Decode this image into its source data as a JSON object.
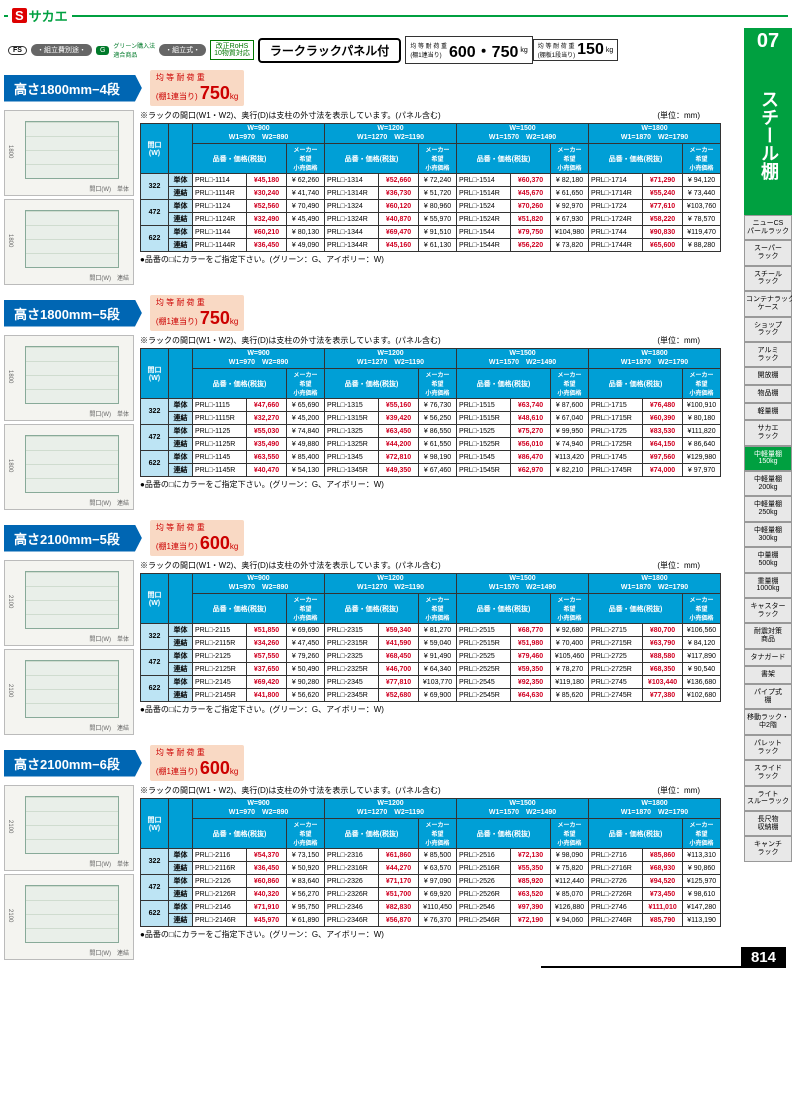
{
  "brand": {
    "s": "S",
    "name": "サカエ"
  },
  "badges": {
    "fs": "FS",
    "p1": "・組立費別途・",
    "g": "G",
    "gtxt": "グリーン購入法\n適合商品",
    "p2": "・組立式・",
    "rohs": "改正RoHS\n10物質対応"
  },
  "title": "ラークラックパネル付",
  "loads": [
    {
      "l": "均 等 耐 荷 重\n(棚1連当り)",
      "n": "600・750",
      "u": "kg"
    },
    {
      "l": "均 等 耐 荷 重\n(棚板1段当り)",
      "n": "150",
      "u": "kg"
    }
  ],
  "side": {
    "num": "07",
    "name": "スチール棚",
    "tabs": [
      "ニューCS\nパールラック",
      "スーパー\nラック",
      "スチール\nラック",
      "コンテナラック\nケース",
      "ショップ\nラック",
      "アルミ\nラック",
      "開放棚",
      "物品棚",
      "軽量棚",
      "サカエ\nラック",
      "中軽量棚\n150kg",
      "中軽量棚\n200kg",
      "中軽量棚\n250kg",
      "中軽量棚\n300kg",
      "中量棚\n500kg",
      "重量棚\n1000kg",
      "キャスター\nラック",
      "耐震対策\n商品",
      "タナガード",
      "書架",
      "パイプ式\n棚",
      "移動ラック・\n中2階",
      "パレット\nラック",
      "スライド\nラック",
      "ライト\nスルーラック",
      "長尺物\n収納棚",
      "キャンチ\nラック"
    ],
    "active": 10
  },
  "tablehdr": {
    "note": "※ラックの間口(W1・W2)、奥行(D)は支柱の外寸法を表示しています。(パネル含む)",
    "unit": "(単位：mm)",
    "cols": [
      "間口\n(W)",
      "W=900\nW1=970　W2=890",
      "W=1200\nW1=1270　W2=1190",
      "W=1500\nW1=1570　W2=1490",
      "W=1800\nW1=1870　W2=1790"
    ],
    "sub": [
      "奥行\n(D)",
      "",
      "品番・価格(税抜)",
      "メーカー\n希望\n小売価格",
      "品番・価格(税抜)",
      "メーカー\n希望\n小売価格",
      "品番・価格(税抜)",
      "メーカー\n希望\n小売価格",
      "品番・価格(税抜)",
      "メーカー\n希望\n小売価格"
    ]
  },
  "footnote": "●品番の□にカラーをご指定下さい。(グリーン：G、アイボリー：W)",
  "sections": [
    {
      "title": "高さ1800mm−4段",
      "load": "750",
      "diags": [
        {
          "h": "1800",
          "lbl": "単体"
        },
        {
          "h": "1800",
          "lbl": "連結"
        }
      ],
      "rows": [
        {
          "d": "322",
          "t": "単体",
          "c": [
            [
              "PRL□-1114",
              "¥45,180",
              "¥ 62,260"
            ],
            [
              "PRL□-1314",
              "¥52,660",
              "¥ 72,240"
            ],
            [
              "PRL□-1514",
              "¥60,370",
              "¥ 82,180"
            ],
            [
              "PRL□-1714",
              "¥71,290",
              "¥ 94,120"
            ]
          ]
        },
        {
          "d": "",
          "t": "連結",
          "c": [
            [
              "PRL□-1114R",
              "¥30,240",
              "¥ 41,740"
            ],
            [
              "PRL□-1314R",
              "¥36,730",
              "¥ 51,720"
            ],
            [
              "PRL□-1514R",
              "¥45,670",
              "¥ 61,650"
            ],
            [
              "PRL□-1714R",
              "¥55,240",
              "¥ 73,440"
            ]
          ]
        },
        {
          "d": "472",
          "t": "単体",
          "c": [
            [
              "PRL□-1124",
              "¥52,560",
              "¥ 70,490"
            ],
            [
              "PRL□-1324",
              "¥60,120",
              "¥ 80,960"
            ],
            [
              "PRL□-1524",
              "¥70,260",
              "¥ 92,970"
            ],
            [
              "PRL□-1724",
              "¥77,610",
              "¥103,760"
            ]
          ]
        },
        {
          "d": "",
          "t": "連結",
          "c": [
            [
              "PRL□-1124R",
              "¥32,490",
              "¥ 45,490"
            ],
            [
              "PRL□-1324R",
              "¥40,870",
              "¥ 55,970"
            ],
            [
              "PRL□-1524R",
              "¥51,820",
              "¥ 67,930"
            ],
            [
              "PRL□-1724R",
              "¥58,220",
              "¥ 78,570"
            ]
          ]
        },
        {
          "d": "622",
          "t": "単体",
          "c": [
            [
              "PRL□-1144",
              "¥60,210",
              "¥ 80,130"
            ],
            [
              "PRL□-1344",
              "¥69,470",
              "¥ 91,510"
            ],
            [
              "PRL□-1544",
              "¥79,750",
              "¥104,980"
            ],
            [
              "PRL□-1744",
              "¥90,830",
              "¥119,470"
            ]
          ]
        },
        {
          "d": "",
          "t": "連結",
          "c": [
            [
              "PRL□-1144R",
              "¥36,450",
              "¥ 49,090"
            ],
            [
              "PRL□-1344R",
              "¥45,160",
              "¥ 61,130"
            ],
            [
              "PRL□-1544R",
              "¥56,220",
              "¥ 73,820"
            ],
            [
              "PRL□-1744R",
              "¥65,600",
              "¥ 88,280"
            ]
          ]
        }
      ]
    },
    {
      "title": "高さ1800mm−5段",
      "load": "750",
      "diags": [
        {
          "h": "1800",
          "lbl": "単体"
        },
        {
          "h": "1800",
          "lbl": "連結"
        }
      ],
      "rows": [
        {
          "d": "322",
          "t": "単体",
          "c": [
            [
              "PRL□-1115",
              "¥47,660",
              "¥ 65,690"
            ],
            [
              "PRL□-1315",
              "¥55,160",
              "¥ 76,730"
            ],
            [
              "PRL□-1515",
              "¥63,740",
              "¥ 87,600"
            ],
            [
              "PRL□-1715",
              "¥76,480",
              "¥100,910"
            ]
          ]
        },
        {
          "d": "",
          "t": "連結",
          "c": [
            [
              "PRL□-1115R",
              "¥32,270",
              "¥ 45,200"
            ],
            [
              "PRL□-1315R",
              "¥39,420",
              "¥ 56,250"
            ],
            [
              "PRL□-1515R",
              "¥48,610",
              "¥ 67,040"
            ],
            [
              "PRL□-1715R",
              "¥60,390",
              "¥ 80,180"
            ]
          ]
        },
        {
          "d": "472",
          "t": "単体",
          "c": [
            [
              "PRL□-1125",
              "¥55,030",
              "¥ 74,840"
            ],
            [
              "PRL□-1325",
              "¥63,450",
              "¥ 86,550"
            ],
            [
              "PRL□-1525",
              "¥75,270",
              "¥ 99,950"
            ],
            [
              "PRL□-1725",
              "¥83,530",
              "¥111,820"
            ]
          ]
        },
        {
          "d": "",
          "t": "連結",
          "c": [
            [
              "PRL□-1125R",
              "¥35,490",
              "¥ 49,880"
            ],
            [
              "PRL□-1325R",
              "¥44,200",
              "¥ 61,550"
            ],
            [
              "PRL□-1525R",
              "¥56,010",
              "¥ 74,940"
            ],
            [
              "PRL□-1725R",
              "¥64,150",
              "¥ 86,640"
            ]
          ]
        },
        {
          "d": "622",
          "t": "単体",
          "c": [
            [
              "PRL□-1145",
              "¥63,550",
              "¥ 85,400"
            ],
            [
              "PRL□-1345",
              "¥72,810",
              "¥ 98,190"
            ],
            [
              "PRL□-1545",
              "¥86,470",
              "¥113,420"
            ],
            [
              "PRL□-1745",
              "¥97,560",
              "¥129,980"
            ]
          ]
        },
        {
          "d": "",
          "t": "連結",
          "c": [
            [
              "PRL□-1145R",
              "¥40,470",
              "¥ 54,130"
            ],
            [
              "PRL□-1345R",
              "¥49,350",
              "¥ 67,460"
            ],
            [
              "PRL□-1545R",
              "¥62,970",
              "¥ 82,210"
            ],
            [
              "PRL□-1745R",
              "¥74,000",
              "¥ 97,970"
            ]
          ]
        }
      ]
    },
    {
      "title": "高さ2100mm−5段",
      "load": "600",
      "diags": [
        {
          "h": "2100",
          "lbl": "単体"
        },
        {
          "h": "2100",
          "lbl": "連結"
        }
      ],
      "rows": [
        {
          "d": "322",
          "t": "単体",
          "c": [
            [
              "PRL□-2115",
              "¥51,850",
              "¥ 69,690"
            ],
            [
              "PRL□-2315",
              "¥59,340",
              "¥ 81,270"
            ],
            [
              "PRL□-2515",
              "¥68,770",
              "¥ 92,680"
            ],
            [
              "PRL□-2715",
              "¥80,700",
              "¥106,560"
            ]
          ]
        },
        {
          "d": "",
          "t": "連結",
          "c": [
            [
              "PRL□-2115R",
              "¥34,260",
              "¥ 47,450"
            ],
            [
              "PRL□-2315R",
              "¥41,590",
              "¥ 59,040"
            ],
            [
              "PRL□-2515R",
              "¥51,980",
              "¥ 70,400"
            ],
            [
              "PRL□-2715R",
              "¥63,790",
              "¥ 84,120"
            ]
          ]
        },
        {
          "d": "472",
          "t": "単体",
          "c": [
            [
              "PRL□-2125",
              "¥57,550",
              "¥ 79,260"
            ],
            [
              "PRL□-2325",
              "¥68,450",
              "¥ 91,490"
            ],
            [
              "PRL□-2525",
              "¥79,460",
              "¥105,460"
            ],
            [
              "PRL□-2725",
              "¥88,580",
              "¥117,890"
            ]
          ]
        },
        {
          "d": "",
          "t": "連結",
          "c": [
            [
              "PRL□-2125R",
              "¥37,650",
              "¥ 50,490"
            ],
            [
              "PRL□-2325R",
              "¥46,700",
              "¥ 64,340"
            ],
            [
              "PRL□-2525R",
              "¥59,350",
              "¥ 78,270"
            ],
            [
              "PRL□-2725R",
              "¥68,350",
              "¥ 90,540"
            ]
          ]
        },
        {
          "d": "622",
          "t": "単体",
          "c": [
            [
              "PRL□-2145",
              "¥69,420",
              "¥ 90,280"
            ],
            [
              "PRL□-2345",
              "¥77,810",
              "¥103,770"
            ],
            [
              "PRL□-2545",
              "¥92,350",
              "¥119,180"
            ],
            [
              "PRL□-2745",
              "¥103,440",
              "¥136,680"
            ]
          ]
        },
        {
          "d": "",
          "t": "連結",
          "c": [
            [
              "PRL□-2145R",
              "¥41,800",
              "¥ 56,620"
            ],
            [
              "PRL□-2345R",
              "¥52,680",
              "¥ 69,900"
            ],
            [
              "PRL□-2545R",
              "¥64,630",
              "¥ 85,620"
            ],
            [
              "PRL□-2745R",
              "¥77,380",
              "¥102,680"
            ]
          ]
        }
      ]
    },
    {
      "title": "高さ2100mm−6段",
      "load": "600",
      "diags": [
        {
          "h": "2100",
          "lbl": "単体"
        },
        {
          "h": "2100",
          "lbl": "連結"
        }
      ],
      "rows": [
        {
          "d": "322",
          "t": "単体",
          "c": [
            [
              "PRL□-2116",
              "¥54,370",
              "¥ 73,150"
            ],
            [
              "PRL□-2316",
              "¥61,860",
              "¥ 85,500"
            ],
            [
              "PRL□-2516",
              "¥72,130",
              "¥ 98,090"
            ],
            [
              "PRL□-2716",
              "¥85,860",
              "¥113,310"
            ]
          ]
        },
        {
          "d": "",
          "t": "連結",
          "c": [
            [
              "PRL□-2116R",
              "¥36,450",
              "¥ 50,920"
            ],
            [
              "PRL□-2316R",
              "¥44,270",
              "¥ 63,570"
            ],
            [
              "PRL□-2516R",
              "¥55,350",
              "¥ 75,820"
            ],
            [
              "PRL□-2716R",
              "¥68,930",
              "¥ 90,860"
            ]
          ]
        },
        {
          "d": "472",
          "t": "単体",
          "c": [
            [
              "PRL□-2126",
              "¥60,860",
              "¥ 83,640"
            ],
            [
              "PRL□-2326",
              "¥71,170",
              "¥ 97,090"
            ],
            [
              "PRL□-2526",
              "¥85,920",
              "¥112,440"
            ],
            [
              "PRL□-2726",
              "¥94,520",
              "¥125,970"
            ]
          ]
        },
        {
          "d": "",
          "t": "連結",
          "c": [
            [
              "PRL□-2126R",
              "¥40,320",
              "¥ 56,270"
            ],
            [
              "PRL□-2326R",
              "¥51,700",
              "¥ 69,920"
            ],
            [
              "PRL□-2526R",
              "¥63,520",
              "¥ 85,070"
            ],
            [
              "PRL□-2726R",
              "¥73,450",
              "¥ 98,610"
            ]
          ]
        },
        {
          "d": "622",
          "t": "単体",
          "c": [
            [
              "PRL□-2146",
              "¥71,910",
              "¥ 95,750"
            ],
            [
              "PRL□-2346",
              "¥82,830",
              "¥110,450"
            ],
            [
              "PRL□-2546",
              "¥97,390",
              "¥126,880"
            ],
            [
              "PRL□-2746",
              "¥111,010",
              "¥147,280"
            ]
          ]
        },
        {
          "d": "",
          "t": "連結",
          "c": [
            [
              "PRL□-2146R",
              "¥45,970",
              "¥ 61,890"
            ],
            [
              "PRL□-2346R",
              "¥56,870",
              "¥ 76,370"
            ],
            [
              "PRL□-2546R",
              "¥72,190",
              "¥ 94,060"
            ],
            [
              "PRL□-2746R",
              "¥85,790",
              "¥113,190"
            ]
          ]
        }
      ]
    }
  ],
  "pagenum": "814"
}
